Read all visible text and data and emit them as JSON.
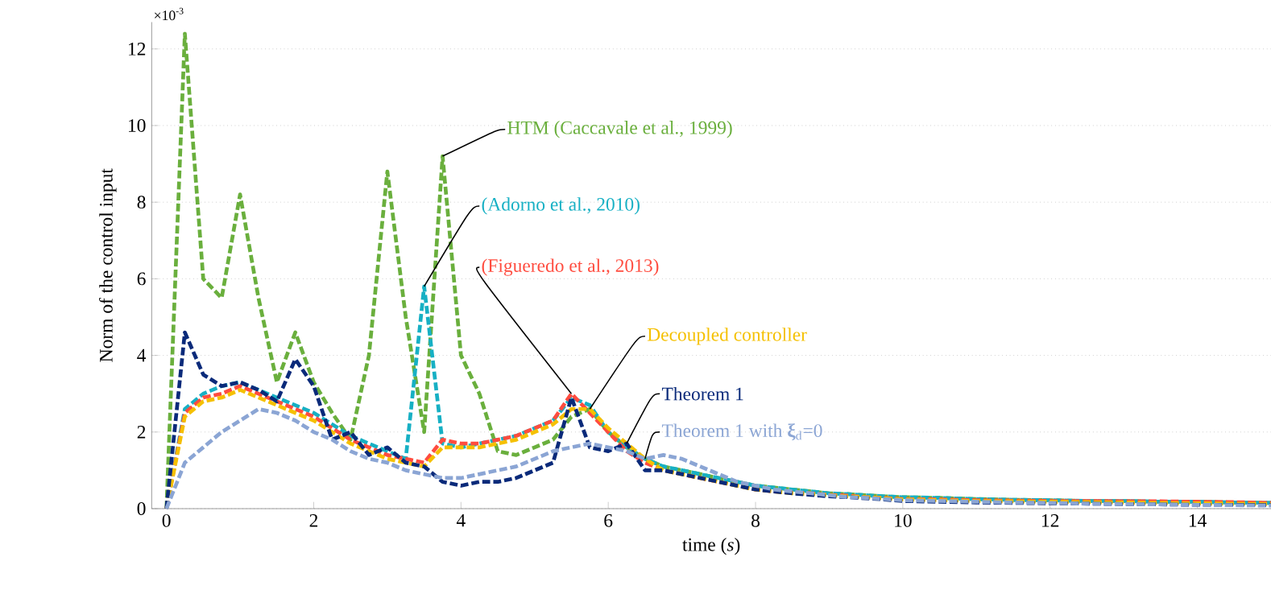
{
  "chart_data": {
    "type": "line",
    "xlabel": "time (*s*)",
    "ylabel": "Norm of the control input",
    "annotations": [
      "×10$^{-3}$"
    ],
    "x": [
      0,
      0.25,
      0.5,
      0.75,
      1,
      1.25,
      1.5,
      1.75,
      2,
      2.25,
      2.5,
      2.75,
      3,
      3.25,
      3.5,
      3.75,
      4,
      4.25,
      4.5,
      4.75,
      5,
      5.25,
      5.5,
      5.75,
      6,
      6.25,
      6.5,
      6.75,
      7,
      7.25,
      7.5,
      7.75,
      8,
      8.25,
      8.5,
      8.75,
      9,
      9.25,
      9.5,
      9.75,
      10,
      10.5,
      11,
      11.5,
      12,
      12.5,
      13,
      13.5,
      14,
      14.5,
      15
    ],
    "xlim": [
      -0.2,
      15
    ],
    "ylim": [
      0,
      12.7
    ],
    "xticks": [
      0,
      2,
      4,
      6,
      8,
      10,
      12,
      14
    ],
    "yticks": [
      0,
      2,
      4,
      6,
      8,
      10,
      12
    ],
    "grid": "y",
    "line_style": "dashed",
    "marker": "none",
    "series": [
      {
        "name": "HTM (Caccavale et al., 1999)",
        "color": "#6aaf3d",
        "values": [
          0,
          12.4,
          6.0,
          5.5,
          8.2,
          5.5,
          3.3,
          4.6,
          3.3,
          2.5,
          1.8,
          4.0,
          8.8,
          5.0,
          2.0,
          9.2,
          4.0,
          3.0,
          1.5,
          1.4,
          1.6,
          1.8,
          2.4,
          2.6,
          2.0,
          1.6,
          1.3,
          1.1,
          1.0,
          0.9,
          0.8,
          0.7,
          0.6,
          0.55,
          0.5,
          0.45,
          0.4,
          0.38,
          0.35,
          0.32,
          0.3,
          0.28,
          0.25,
          0.23,
          0.22,
          0.2,
          0.2,
          0.18,
          0.18,
          0.16,
          0.15
        ]
      },
      {
        "name": "(Adorno et al., 2010)",
        "color": "#17b0c4",
        "values": [
          0,
          2.6,
          3.0,
          3.2,
          3.3,
          3.1,
          2.9,
          2.7,
          2.5,
          2.2,
          1.9,
          1.7,
          1.5,
          1.3,
          5.8,
          1.7,
          1.6,
          1.7,
          1.8,
          1.9,
          2.1,
          2.3,
          2.9,
          2.7,
          2.0,
          1.6,
          1.3,
          1.1,
          1.0,
          0.9,
          0.8,
          0.7,
          0.6,
          0.55,
          0.5,
          0.45,
          0.4,
          0.38,
          0.35,
          0.32,
          0.3,
          0.28,
          0.25,
          0.23,
          0.22,
          0.2,
          0.2,
          0.18,
          0.18,
          0.16,
          0.15
        ]
      },
      {
        "name": "(Figueredo et al., 2013)",
        "color": "#ff4c3f",
        "values": [
          0,
          2.5,
          2.9,
          3.0,
          3.2,
          3.0,
          2.8,
          2.6,
          2.4,
          2.1,
          1.8,
          1.6,
          1.4,
          1.3,
          1.2,
          1.8,
          1.7,
          1.7,
          1.8,
          1.9,
          2.1,
          2.3,
          3.0,
          2.5,
          2.0,
          1.5,
          1.2,
          1.0,
          0.9,
          0.8,
          0.7,
          0.6,
          0.5,
          0.45,
          0.42,
          0.4,
          0.36,
          0.34,
          0.3,
          0.28,
          0.25,
          0.24,
          0.22,
          0.21,
          0.2,
          0.2,
          0.19,
          0.19,
          0.18,
          0.17,
          0.15
        ]
      },
      {
        "name": "Decoupled controller",
        "color": "#f5c000",
        "values": [
          0,
          2.4,
          2.8,
          2.9,
          3.1,
          2.9,
          2.7,
          2.5,
          2.3,
          2.0,
          1.7,
          1.5,
          1.3,
          1.2,
          1.1,
          1.6,
          1.6,
          1.6,
          1.7,
          1.8,
          2.0,
          2.2,
          2.6,
          2.6,
          2.1,
          1.7,
          1.3,
          1.0,
          0.9,
          0.8,
          0.7,
          0.6,
          0.5,
          0.45,
          0.4,
          0.38,
          0.35,
          0.32,
          0.3,
          0.27,
          0.24,
          0.22,
          0.2,
          0.19,
          0.18,
          0.17,
          0.16,
          0.15,
          0.14,
          0.13,
          0.12
        ]
      },
      {
        "name": "Theorem 1",
        "color": "#0a2a7a",
        "values": [
          0,
          4.6,
          3.5,
          3.2,
          3.3,
          3.1,
          2.8,
          3.9,
          3.2,
          1.8,
          2.0,
          1.4,
          1.6,
          1.2,
          1.1,
          0.7,
          0.6,
          0.7,
          0.7,
          0.8,
          1.0,
          1.2,
          2.9,
          1.6,
          1.5,
          1.7,
          1.0,
          1.0,
          0.9,
          0.8,
          0.7,
          0.6,
          0.5,
          0.45,
          0.4,
          0.36,
          0.32,
          0.3,
          0.27,
          0.24,
          0.2,
          0.18,
          0.16,
          0.15,
          0.14,
          0.13,
          0.12,
          0.11,
          0.1,
          0.1,
          0.09
        ]
      },
      {
        "name": "Theorem 1 with **ξ**$_{d}$=0",
        "color": "#8ba5d4",
        "values": [
          0,
          1.2,
          1.6,
          2.0,
          2.3,
          2.6,
          2.5,
          2.3,
          2.0,
          1.8,
          1.5,
          1.3,
          1.2,
          1.0,
          0.9,
          0.8,
          0.8,
          0.9,
          1.0,
          1.1,
          1.3,
          1.5,
          1.6,
          1.7,
          1.6,
          1.5,
          1.3,
          1.4,
          1.3,
          1.1,
          0.9,
          0.7,
          0.6,
          0.5,
          0.45,
          0.4,
          0.35,
          0.3,
          0.28,
          0.25,
          0.22,
          0.2,
          0.18,
          0.16,
          0.15,
          0.13,
          0.12,
          0.11,
          0.1,
          0.09,
          0.08
        ]
      }
    ]
  }
}
